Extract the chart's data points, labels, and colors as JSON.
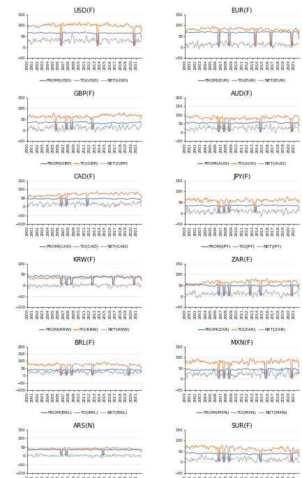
{
  "subplots": [
    {
      "title": "USD(F)",
      "ylim": [
        -50,
        150
      ],
      "yticks": [
        -50,
        0,
        50,
        100,
        150
      ],
      "legend": [
        "FROM(USD)",
        "TO(USD)",
        "NET(USD)"
      ],
      "from_base": 65,
      "to_base": 100,
      "net_base": 25,
      "from_vol": 8,
      "to_vol": 15,
      "net_vol": 18,
      "spike_drops": [
        6,
        13,
        20
      ],
      "spike_from": 5,
      "spike_to": 10
    },
    {
      "title": "EUR(F)",
      "ylim": [
        -50,
        150
      ],
      "yticks": [
        -50,
        0,
        50,
        100,
        150
      ],
      "legend": [
        "FROM(EUR)",
        "TO(EUR)",
        "NET(EUR)"
      ],
      "from_base": 68,
      "to_base": 82,
      "net_base": 10,
      "from_vol": 8,
      "to_vol": 14,
      "net_vol": 18,
      "spike_drops": [
        6,
        8,
        13,
        16,
        20
      ],
      "spike_from": 5,
      "spike_to": 10
    },
    {
      "title": "GBP(F)",
      "ylim": [
        -50,
        150
      ],
      "yticks": [
        -50,
        0,
        50,
        100,
        150
      ],
      "legend": [
        "FROM(GBP)",
        "TO(GBP)",
        "NET(GBP)"
      ],
      "from_base": 35,
      "to_base": 65,
      "net_base": 5,
      "from_vol": 10,
      "to_vol": 18,
      "net_vol": 20,
      "spike_drops": [
        5,
        7,
        8,
        12
      ],
      "spike_from": 3,
      "spike_to": 8
    },
    {
      "title": "AUD(F)",
      "ylim": [
        -50,
        200
      ],
      "yticks": [
        -50,
        0,
        50,
        100,
        150,
        200
      ],
      "legend": [
        "FROM(AUD)",
        "TO(AUD)",
        "NET(AUD)"
      ],
      "from_base": 55,
      "to_base": 85,
      "net_base": 20,
      "from_vol": 12,
      "to_vol": 20,
      "net_vol": 22,
      "spike_drops": [
        6,
        7,
        8,
        14,
        20
      ],
      "spike_from": 3,
      "spike_to": 8
    },
    {
      "title": "CAD(F)",
      "ylim": [
        -100,
        150
      ],
      "yticks": [
        -100,
        -50,
        0,
        50,
        100,
        150
      ],
      "legend": [
        "FROM(CAD)",
        "TO(CAD)",
        "NET(CAD)"
      ],
      "from_base": 45,
      "to_base": 70,
      "net_base": 10,
      "from_vol": 10,
      "to_vol": 16,
      "net_vol": 20,
      "spike_drops": [
        6,
        7,
        11
      ],
      "spike_from": 3,
      "spike_to": 8
    },
    {
      "title": "JPY(F)",
      "ylim": [
        -50,
        150
      ],
      "yticks": [
        -50,
        0,
        50,
        100,
        150
      ],
      "legend": [
        "FROM(JPY)",
        "TO(JPY)",
        "NET(JPY)"
      ],
      "from_base": 35,
      "to_base": 60,
      "net_base": 5,
      "from_vol": 10,
      "to_vol": 15,
      "net_vol": 18,
      "spike_drops": [
        6,
        7,
        8,
        13
      ],
      "spike_from": 3,
      "spike_to": 8
    },
    {
      "title": "KRW(F)",
      "ylim": [
        -100,
        100
      ],
      "yticks": [
        -100,
        -50,
        0,
        50,
        100
      ],
      "legend": [
        "FROM(KRW)",
        "TO(KRW)",
        "NET(KRW)"
      ],
      "from_base": 40,
      "to_base": 35,
      "net_base": 0,
      "from_vol": 12,
      "to_vol": 14,
      "net_vol": 12,
      "spike_drops": [
        6,
        7,
        8,
        12,
        16,
        20
      ],
      "spike_from": 3,
      "spike_to": 3
    },
    {
      "title": "ZAR(F)",
      "ylim": [
        -50,
        150
      ],
      "yticks": [
        -50,
        0,
        50,
        100,
        150
      ],
      "legend": [
        "FROM(ZAR)",
        "TO(ZAR)",
        "NET(ZAR)"
      ],
      "from_base": 50,
      "to_base": 65,
      "net_base": 10,
      "from_vol": 12,
      "to_vol": 16,
      "net_vol": 18,
      "spike_drops": [
        6,
        7,
        8,
        12,
        14,
        20
      ],
      "spike_from": 3,
      "spike_to": 5
    },
    {
      "title": "BRL(F)",
      "ylim": [
        -100,
        200
      ],
      "yticks": [
        -100,
        -50,
        0,
        50,
        100,
        150,
        200
      ],
      "legend": [
        "FROM(BRL)",
        "TO(BRL)",
        "NET(BRL)"
      ],
      "from_base": 40,
      "to_base": 75,
      "net_base": 15,
      "from_vol": 14,
      "to_vol": 20,
      "net_vol": 22,
      "spike_drops": [
        6,
        7,
        8,
        12,
        19
      ],
      "spike_from": 3,
      "spike_to": 10
    },
    {
      "title": "MXN(F)",
      "ylim": [
        -50,
        150
      ],
      "yticks": [
        -50,
        0,
        50,
        100,
        150
      ],
      "legend": [
        "FROM(MXN)",
        "TO(MXN)",
        "NET(MXN)"
      ],
      "from_base": 45,
      "to_base": 80,
      "net_base": 20,
      "from_vol": 12,
      "to_vol": 20,
      "net_vol": 22,
      "spike_drops": [
        6,
        7,
        8,
        15,
        20
      ],
      "spike_from": 3,
      "spike_to": 8
    },
    {
      "title": "ARS(N)",
      "ylim": [
        -100,
        150
      ],
      "yticks": [
        -100,
        -50,
        0,
        50,
        100,
        150
      ],
      "legend": [
        "FROM(ARS)",
        "TO(ARS)",
        "NET(ARS)"
      ],
      "from_base": 35,
      "to_base": 40,
      "net_base": 0,
      "from_vol": 8,
      "to_vol": 10,
      "net_vol": 12,
      "spike_drops": [
        6,
        7,
        14
      ],
      "spike_from": 3,
      "spike_to": 5
    },
    {
      "title": "SUR(F)",
      "ylim": [
        -50,
        150
      ],
      "yticks": [
        -50,
        0,
        50,
        100,
        150
      ],
      "legend": [
        "FROM(SUR)",
        "TO(SUR)",
        "NET(SUR)"
      ],
      "from_base": 40,
      "to_base": 65,
      "net_base": 10,
      "from_vol": 10,
      "to_vol": 18,
      "net_vol": 18,
      "spike_drops": [
        6,
        7,
        8,
        14,
        20
      ],
      "spike_from": 3,
      "spike_to": 8
    }
  ],
  "colors": {
    "from": "#4472c4",
    "to": "#ed7d31",
    "net": "#a6a6a6"
  },
  "line_width": 0.6,
  "n_years": 22,
  "n_points": 264,
  "background": "#ffffff",
  "title_fontsize": 6.5,
  "legend_fontsize": 4.5,
  "tick_fontsize": 4.0,
  "year_labels": [
    "2000",
    "2001",
    "2002",
    "2003",
    "2004",
    "2005",
    "2006",
    "2007",
    "2008",
    "2009",
    "2010",
    "2011",
    "2012",
    "2013",
    "2014",
    "2015",
    "2016",
    "2017",
    "2018",
    "2019",
    "2020",
    "2021"
  ]
}
